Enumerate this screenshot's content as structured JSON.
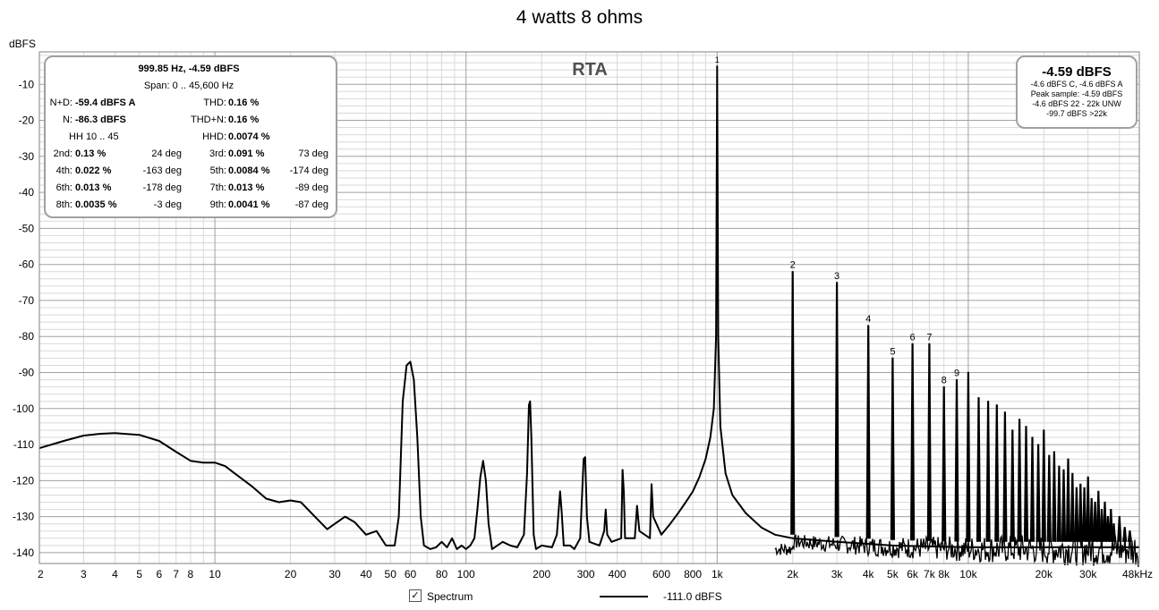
{
  "title": "4 watts 8 ohms",
  "y_unit": "dBFS",
  "rta_label": "RTA",
  "measurements": {
    "header1": "999.85 Hz, -4.59 dBFS",
    "header2": "Span: 0 .. 45,600 Hz",
    "nd_label": "N+D:",
    "nd_value": "-59.4 dBFS A",
    "thd_label": "THD:",
    "thd_value": "0.16 %",
    "n_label": "N:",
    "n_value": "-86.3 dBFS",
    "thdn_label": "THD+N:",
    "thdn_value": "0.16 %",
    "hh_label": "HH 10 .. 45",
    "hhd_label": "HHD:",
    "hhd_value": "0.0074 %",
    "harmonics": [
      {
        "l1": "2nd:",
        "v1": "0.13 %",
        "p1": "24 deg",
        "l2": "3rd:",
        "v2": "0.091 %",
        "p2": "73 deg"
      },
      {
        "l1": "4th:",
        "v1": "0.022 %",
        "p1": "-163 deg",
        "l2": "5th:",
        "v2": "0.0084 %",
        "p2": "-174 deg"
      },
      {
        "l1": "6th:",
        "v1": "0.013 %",
        "p1": "-178 deg",
        "l2": "7th:",
        "v2": "0.013 %",
        "p2": "-89 deg"
      },
      {
        "l1": "8th:",
        "v1": "0.0035 %",
        "p1": "-3 deg",
        "l2": "9th:",
        "v2": "0.0041 %",
        "p2": "-87 deg"
      }
    ]
  },
  "peak_box": {
    "main": "-4.59 dBFS",
    "line1": "-4.6 dBFS C, -4.6 dBFS A",
    "line2": "Peak sample: -4.59 dBFS",
    "line3": "-4.6 dBFS 22 - 22k UNW",
    "line4": "-99.7 dBFS >22k"
  },
  "legend": {
    "checkbox": "✓",
    "label": "Spectrum",
    "value": "-111.0 dBFS"
  },
  "colors": {
    "trace": "#000000",
    "grid_major": "#a0a0a0",
    "grid_minor": "#d8d8d8",
    "box_border": "#a0a0a0"
  },
  "chart_data": {
    "type": "line",
    "x_scale": "log",
    "xlim": [
      2,
      48000
    ],
    "ylim": [
      -143,
      -1
    ],
    "ylabel": "dBFS",
    "x_ticks": [
      {
        "v": 2,
        "label": "2"
      },
      {
        "v": 3,
        "label": "3"
      },
      {
        "v": 4,
        "label": "4"
      },
      {
        "v": 5,
        "label": "5"
      },
      {
        "v": 6,
        "label": "6"
      },
      {
        "v": 7,
        "label": "7"
      },
      {
        "v": 8,
        "label": "8"
      },
      {
        "v": 10,
        "label": "10"
      },
      {
        "v": 20,
        "label": "20"
      },
      {
        "v": 30,
        "label": "30"
      },
      {
        "v": 40,
        "label": "40"
      },
      {
        "v": 50,
        "label": "50"
      },
      {
        "v": 60,
        "label": "60"
      },
      {
        "v": 80,
        "label": "80"
      },
      {
        "v": 100,
        "label": "100"
      },
      {
        "v": 200,
        "label": "200"
      },
      {
        "v": 300,
        "label": "300"
      },
      {
        "v": 400,
        "label": "400"
      },
      {
        "v": 600,
        "label": "600"
      },
      {
        "v": 800,
        "label": "800"
      },
      {
        "v": 1000,
        "label": "1k"
      },
      {
        "v": 2000,
        "label": "2k"
      },
      {
        "v": 3000,
        "label": "3k"
      },
      {
        "v": 4000,
        "label": "4k"
      },
      {
        "v": 5000,
        "label": "5k"
      },
      {
        "v": 6000,
        "label": "6k"
      },
      {
        "v": 7000,
        "label": "7k"
      },
      {
        "v": 8000,
        "label": "8k"
      },
      {
        "v": 10000,
        "label": "10k"
      },
      {
        "v": 20000,
        "label": "20k"
      },
      {
        "v": 30000,
        "label": "30k"
      },
      {
        "v": 48000,
        "label": "48kHz"
      }
    ],
    "y_ticks": [
      -10,
      -20,
      -30,
      -40,
      -50,
      -60,
      -70,
      -80,
      -90,
      -100,
      -110,
      -120,
      -130,
      -140
    ],
    "grid": true,
    "series": [
      {
        "smooth": [
          [
            2,
            -111
          ],
          [
            2.5,
            -109
          ],
          [
            3,
            -107.5
          ],
          [
            3.5,
            -107
          ],
          [
            4,
            -106.8
          ],
          [
            5,
            -107.3
          ],
          [
            6,
            -109
          ],
          [
            7,
            -112
          ],
          [
            8,
            -114.5
          ],
          [
            9,
            -115
          ],
          [
            10,
            -115
          ],
          [
            11,
            -116
          ],
          [
            12,
            -118
          ],
          [
            14,
            -121.5
          ],
          [
            16,
            -125
          ],
          [
            18,
            -126
          ],
          [
            20,
            -125.5
          ],
          [
            22,
            -126
          ],
          [
            25,
            -130
          ],
          [
            28,
            -133.5
          ],
          [
            30,
            -132
          ],
          [
            33,
            -130
          ],
          [
            36,
            -131.5
          ],
          [
            40,
            -135
          ],
          [
            44,
            -134
          ],
          [
            48,
            -138
          ],
          [
            52,
            -138
          ],
          [
            54,
            -130
          ],
          [
            56,
            -98
          ],
          [
            58,
            -88
          ],
          [
            60,
            -87
          ],
          [
            62,
            -92
          ],
          [
            64,
            -108
          ],
          [
            66,
            -130
          ],
          [
            68,
            -138
          ],
          [
            72,
            -139
          ],
          [
            76,
            -138.5
          ],
          [
            80,
            -137
          ],
          [
            84,
            -138.5
          ],
          [
            88,
            -136
          ],
          [
            92,
            -139
          ],
          [
            96,
            -138
          ],
          [
            100,
            -139
          ],
          [
            104,
            -138
          ],
          [
            108,
            -136
          ],
          [
            111,
            -128
          ],
          [
            114,
            -119
          ],
          [
            117,
            -114.5
          ],
          [
            120,
            -120
          ],
          [
            123,
            -132
          ],
          [
            127,
            -139
          ],
          [
            140,
            -137
          ],
          [
            150,
            -138
          ],
          [
            160,
            -138.5
          ],
          [
            170,
            -135
          ],
          [
            175,
            -118
          ],
          [
            178,
            -99
          ],
          [
            180,
            -98
          ],
          [
            182,
            -108
          ],
          [
            186,
            -135
          ],
          [
            190,
            -139
          ],
          [
            200,
            -138
          ],
          [
            220,
            -138.5
          ],
          [
            230,
            -135
          ],
          [
            237,
            -123
          ],
          [
            240,
            -128
          ],
          [
            245,
            -138
          ],
          [
            260,
            -138
          ],
          [
            270,
            -139
          ],
          [
            285,
            -136
          ],
          [
            294,
            -114
          ],
          [
            298,
            -113.5
          ],
          [
            303,
            -130
          ],
          [
            310,
            -137
          ],
          [
            340,
            -138
          ],
          [
            355,
            -134
          ],
          [
            360,
            -128
          ],
          [
            365,
            -135
          ],
          [
            380,
            -137
          ],
          [
            415,
            -136
          ],
          [
            420,
            -117
          ],
          [
            425,
            -123
          ],
          [
            430,
            -136
          ],
          [
            470,
            -136
          ],
          [
            480,
            -127
          ],
          [
            490,
            -134
          ],
          [
            540,
            -136
          ],
          [
            548,
            -121
          ],
          [
            556,
            -130
          ],
          [
            600,
            -135
          ],
          [
            650,
            -132
          ],
          [
            700,
            -129
          ],
          [
            750,
            -126
          ],
          [
            800,
            -123
          ],
          [
            850,
            -119
          ],
          [
            900,
            -114
          ],
          [
            940,
            -108
          ],
          [
            970,
            -100
          ],
          [
            990,
            -80
          ],
          [
            1000,
            -5
          ],
          [
            1010,
            -80
          ],
          [
            1030,
            -105
          ],
          [
            1080,
            -118
          ],
          [
            1150,
            -124
          ],
          [
            1300,
            -129
          ],
          [
            1500,
            -133
          ],
          [
            1700,
            -135
          ],
          [
            2000,
            -136
          ],
          [
            3000,
            -137
          ],
          [
            5000,
            -138
          ],
          [
            10000,
            -138.5
          ],
          [
            48000,
            -138.5
          ]
        ],
        "harmonic_peaks": [
          {
            "f": 2000,
            "db": -62
          },
          {
            "f": 3000,
            "db": -65
          },
          {
            "f": 4000,
            "db": -77
          },
          {
            "f": 5000,
            "db": -86
          },
          {
            "f": 6000,
            "db": -82
          },
          {
            "f": 7000,
            "db": -82
          },
          {
            "f": 8000,
            "db": -94
          },
          {
            "f": 9000,
            "db": -92
          },
          {
            "f": 10000,
            "db": -90
          },
          {
            "f": 11000,
            "db": -97
          },
          {
            "f": 12000,
            "db": -98
          },
          {
            "f": 13000,
            "db": -99
          },
          {
            "f": 14000,
            "db": -101
          },
          {
            "f": 15000,
            "db": -106
          },
          {
            "f": 16000,
            "db": -103
          },
          {
            "f": 17000,
            "db": -105
          },
          {
            "f": 18000,
            "db": -108
          },
          {
            "f": 19000,
            "db": -110
          },
          {
            "f": 20000,
            "db": -106
          },
          {
            "f": 21000,
            "db": -113
          },
          {
            "f": 22000,
            "db": -112
          },
          {
            "f": 23000,
            "db": -116
          },
          {
            "f": 24000,
            "db": -117
          },
          {
            "f": 25000,
            "db": -114
          },
          {
            "f": 26000,
            "db": -118
          },
          {
            "f": 27000,
            "db": -122
          },
          {
            "f": 28000,
            "db": -121
          },
          {
            "f": 29000,
            "db": -122
          },
          {
            "f": 30000,
            "db": -119
          },
          {
            "f": 31000,
            "db": -125
          },
          {
            "f": 32000,
            "db": -126
          },
          {
            "f": 33000,
            "db": -123
          },
          {
            "f": 34000,
            "db": -128
          },
          {
            "f": 35000,
            "db": -126
          },
          {
            "f": 36000,
            "db": -130
          },
          {
            "f": 37000,
            "db": -128
          },
          {
            "f": 38000,
            "db": -132
          },
          {
            "f": 40000,
            "db": -130
          },
          {
            "f": 42000,
            "db": -133
          },
          {
            "f": 44000,
            "db": -134
          }
        ],
        "noise_floor": [
          [
            2000,
            -137
          ],
          [
            5000,
            -138.5
          ],
          [
            10000,
            -139
          ],
          [
            20000,
            -139
          ],
          [
            48000,
            -139
          ]
        ]
      }
    ],
    "annotations": [
      {
        "f": 2000,
        "db": -62,
        "label": "2"
      },
      {
        "f": 3000,
        "db": -65,
        "label": "3"
      },
      {
        "f": 4000,
        "db": -77,
        "label": "4"
      },
      {
        "f": 5000,
        "db": -86,
        "label": "5"
      },
      {
        "f": 6000,
        "db": -82,
        "label": "6"
      },
      {
        "f": 7000,
        "db": -82,
        "label": "7"
      },
      {
        "f": 8000,
        "db": -94,
        "label": "8"
      },
      {
        "f": 9000,
        "db": -92,
        "label": "9"
      },
      {
        "f": 1000,
        "db": -5,
        "label": "1"
      }
    ]
  }
}
